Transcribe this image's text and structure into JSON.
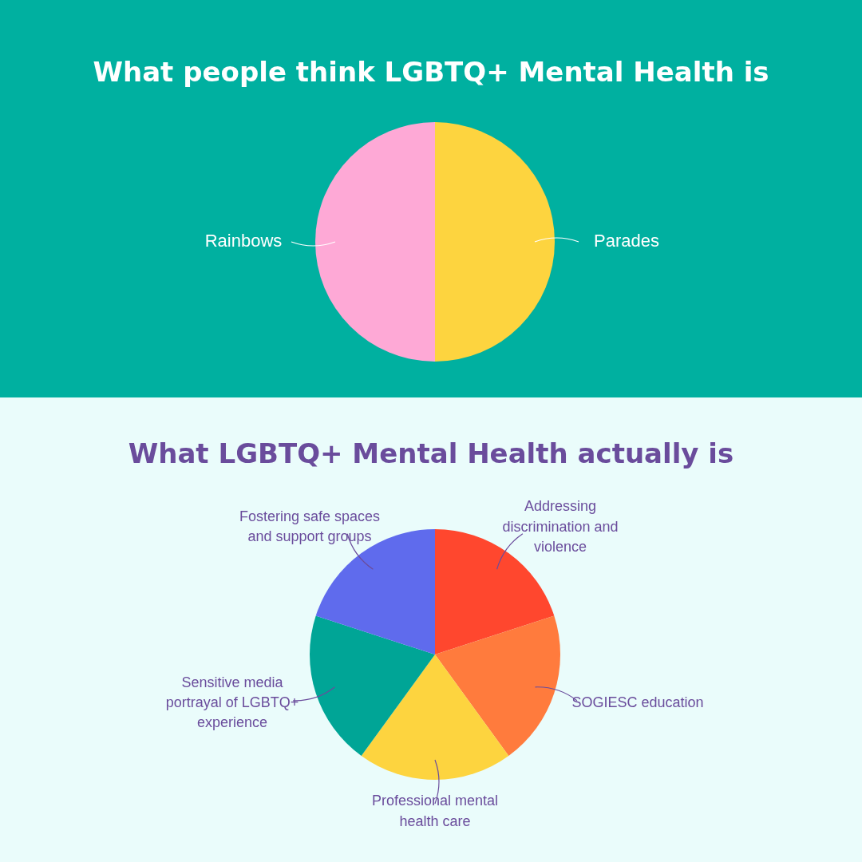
{
  "chart_data": [
    {
      "type": "pie",
      "title": "What people think LGBTQ+ Mental Health is",
      "categories": [
        "Parades",
        "Rainbows"
      ],
      "values": [
        50,
        50
      ],
      "colors": [
        "#fdd43f",
        "#fea9d6"
      ]
    },
    {
      "type": "pie",
      "title": "What LGBTQ+ Mental Health actually is",
      "categories": [
        "Addressing discrimination and violence",
        "SOGIESC education",
        "Professional mental health care",
        "Sensitive media portrayal of LGBTQ+ experience",
        "Fostering safe spaces and support groups"
      ],
      "values": [
        20,
        20,
        20,
        20,
        20
      ],
      "colors": [
        "#ff472e",
        "#ff7b3d",
        "#fdd43f",
        "#00a596",
        "#5f6bed"
      ]
    }
  ]
}
